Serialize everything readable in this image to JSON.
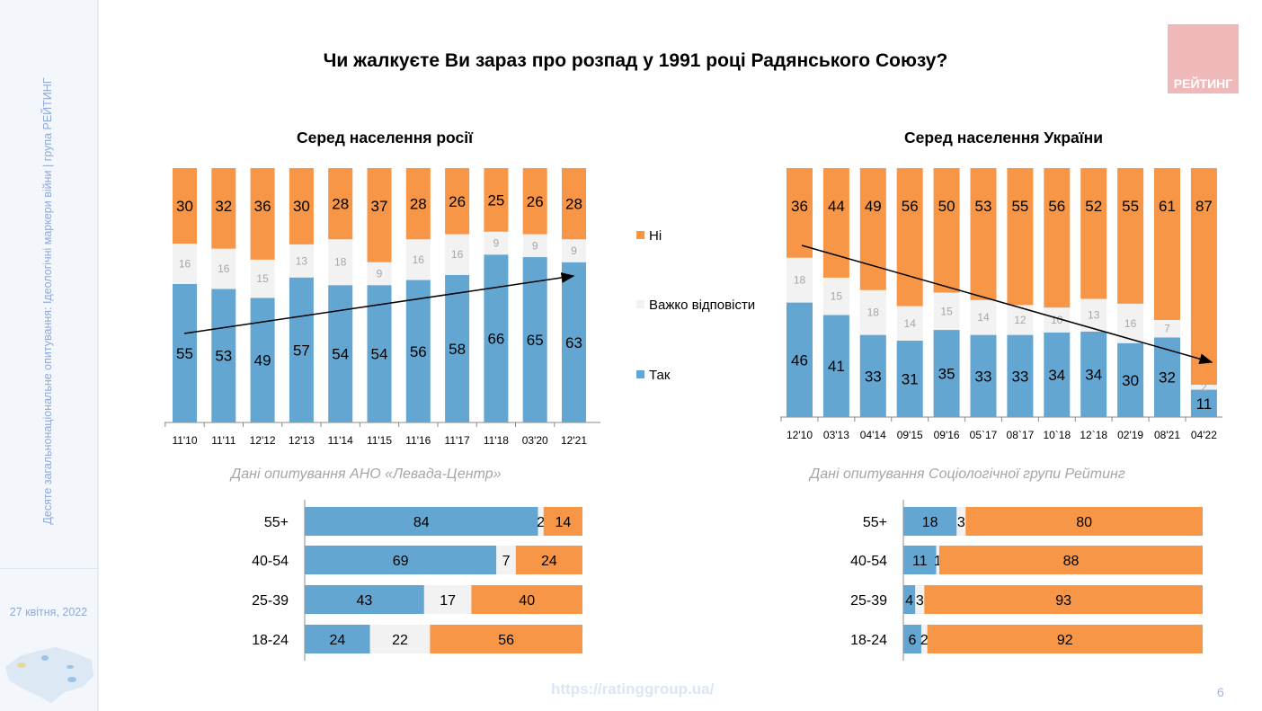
{
  "sidebar": {
    "caption": "Десяте загальнонаціональне опитування: Ідеологічні маркери війни  |  група РЕЙТИНГ",
    "date": "27 квітня, 2022"
  },
  "title": "Чи жалкуєте Ви зараз про розпад у 1991 році Радянського Союзу?",
  "logo": "РЕЙТИНГ",
  "footer": {
    "url": "https://ratinggroup.ua/",
    "page": "6"
  },
  "colors": {
    "yes": "#64a6d2",
    "hard": "#f2f2f2",
    "no": "#f79646"
  },
  "legend": [
    {
      "label": "Ні",
      "color": "#f79646"
    },
    {
      "label": "Важко відповісти",
      "color": "#f2f2f2"
    },
    {
      "label": "Так",
      "color": "#64a6d2"
    }
  ],
  "chart_data": [
    {
      "type": "bar",
      "stacked": true,
      "title": "Серед населення росії",
      "source": "Дані опитування АНО «Левада-Центр»",
      "categories": [
        "11'10",
        "11'11",
        "12'12",
        "12'13",
        "11'14",
        "11'15",
        "11'16",
        "11'17",
        "11'18",
        "03'20",
        "12'21"
      ],
      "series": [
        {
          "name": "Так",
          "values": [
            55,
            53,
            49,
            57,
            54,
            54,
            56,
            58,
            66,
            65,
            63
          ]
        },
        {
          "name": "Важко відповісти",
          "values": [
            16,
            16,
            15,
            13,
            18,
            9,
            16,
            16,
            9,
            9,
            9
          ]
        },
        {
          "name": "Ні",
          "values": [
            30,
            32,
            36,
            30,
            28,
            37,
            28,
            26,
            25,
            26,
            28
          ]
        }
      ],
      "trend": "up"
    },
    {
      "type": "bar",
      "stacked": true,
      "title": "Серед населення України",
      "source": "Дані опитування Соціологічної групи Рейтинг",
      "categories": [
        "12'10",
        "03'13",
        "04'14",
        "09'15",
        "09'16",
        "05`17",
        "08`17",
        "10`18",
        "12`18",
        "02'19",
        "08'21",
        "04'22"
      ],
      "series": [
        {
          "name": "Так",
          "values": [
            46,
            41,
            33,
            31,
            35,
            33,
            33,
            34,
            34,
            30,
            32,
            11
          ]
        },
        {
          "name": "Важко відповісти",
          "values": [
            18,
            15,
            18,
            14,
            15,
            14,
            12,
            10,
            13,
            16,
            7,
            2
          ]
        },
        {
          "name": "Ні",
          "values": [
            36,
            44,
            49,
            56,
            50,
            53,
            55,
            56,
            52,
            55,
            61,
            87
          ]
        }
      ],
      "trend": "down"
    },
    {
      "type": "bar",
      "orientation": "horizontal",
      "stacked": true,
      "categories": [
        "55+",
        "40-54",
        "25-39",
        "18-24"
      ],
      "series": [
        {
          "name": "Так",
          "values": [
            84,
            69,
            43,
            24
          ]
        },
        {
          "name": "Важко відповісти",
          "values": [
            2,
            7,
            17,
            22
          ]
        },
        {
          "name": "Ні",
          "values": [
            14,
            24,
            40,
            56
          ]
        }
      ]
    },
    {
      "type": "bar",
      "orientation": "horizontal",
      "stacked": true,
      "categories": [
        "55+",
        "40-54",
        "25-39",
        "18-24"
      ],
      "series": [
        {
          "name": "Так",
          "values": [
            18,
            11,
            4,
            6
          ]
        },
        {
          "name": "Важко відповісти",
          "values": [
            3,
            1,
            3,
            2
          ]
        },
        {
          "name": "Ні",
          "values": [
            80,
            88,
            93,
            92
          ]
        }
      ]
    }
  ]
}
